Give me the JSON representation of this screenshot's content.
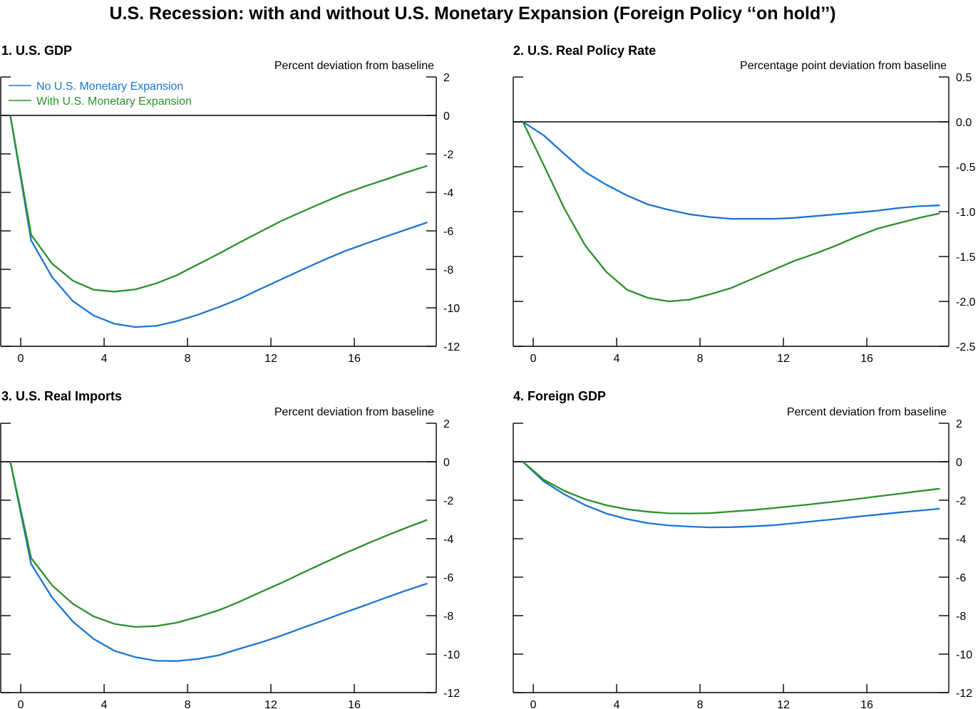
{
  "title": "U.S. Recession: with and without U.S. Monetary Expansion (Foreign Policy ‘‘on hold’’)",
  "legend": [
    {
      "label": "No U.S. Monetary Expansion",
      "color": "#1b75d0"
    },
    {
      "label": "With U.S. Monetary Expansion",
      "color": "#2b8f2b"
    }
  ],
  "chart_data": [
    {
      "type": "line",
      "title": "1. U.S. GDP",
      "ylabel": "Percent deviation from baseline",
      "xlabel": "",
      "xlim": [
        -1,
        20
      ],
      "ylim": [
        -12,
        2
      ],
      "xticks": [
        0,
        4,
        8,
        12,
        16
      ],
      "yticks": [
        2,
        0,
        -2,
        -4,
        -6,
        -8,
        -10,
        -12
      ],
      "ytick_labels": [
        "2",
        "0",
        "-2",
        "-4",
        "-6",
        "-8",
        "-10",
        "-12"
      ],
      "legend": "top-left",
      "grid": false,
      "zero_line": true,
      "x": [
        -0.5,
        0.5,
        1.5,
        2.5,
        3.5,
        4.5,
        5.5,
        6.5,
        7.5,
        8.5,
        9.5,
        10.5,
        11.5,
        12.5,
        13.5,
        14.5,
        15.5,
        16.5,
        17.5,
        18.5,
        19.5
      ],
      "series": [
        {
          "name": "No U.S. Monetary Expansion",
          "color": "#1b75d0",
          "values": [
            0,
            -6.5,
            -8.4,
            -9.65,
            -10.4,
            -10.83,
            -11.0,
            -10.94,
            -10.69,
            -10.36,
            -9.96,
            -9.53,
            -9.02,
            -8.52,
            -8.02,
            -7.53,
            -7.07,
            -6.68,
            -6.3,
            -5.93,
            -5.56
          ]
        },
        {
          "name": "With U.S. Monetary Expansion",
          "color": "#2b8f2b",
          "values": [
            0,
            -6.2,
            -7.7,
            -8.59,
            -9.06,
            -9.16,
            -9.04,
            -8.73,
            -8.3,
            -7.74,
            -7.19,
            -6.6,
            -6.04,
            -5.48,
            -5.0,
            -4.53,
            -4.07,
            -3.69,
            -3.33,
            -2.96,
            -2.62
          ]
        }
      ]
    },
    {
      "type": "line",
      "title": "2. U.S. Real Policy Rate",
      "ylabel": "Percentage point deviation from baseline",
      "xlabel": "",
      "xlim": [
        -1,
        20
      ],
      "ylim": [
        -2.5,
        0.5
      ],
      "xticks": [
        0,
        4,
        8,
        12,
        16
      ],
      "yticks": [
        0.5,
        0,
        -0.5,
        -1,
        -1.5,
        -2,
        -2.5
      ],
      "ytick_labels": [
        "0.5",
        "0.0",
        "-0.5",
        "-1.0",
        "-1.5",
        "-2.0",
        "-2.5"
      ],
      "grid": false,
      "zero_line": true,
      "x": [
        -0.5,
        0.5,
        1.5,
        2.5,
        3.5,
        4.5,
        5.5,
        6.5,
        7.5,
        8.5,
        9.5,
        10.5,
        11.5,
        12.5,
        13.5,
        14.5,
        15.5,
        16.5,
        17.5,
        18.5,
        19.5
      ],
      "series": [
        {
          "name": "No U.S. Monetary Expansion",
          "color": "#1b75d0",
          "values": [
            0,
            -0.15,
            -0.36,
            -0.56,
            -0.7,
            -0.82,
            -0.92,
            -0.98,
            -1.03,
            -1.06,
            -1.08,
            -1.08,
            -1.08,
            -1.07,
            -1.05,
            -1.03,
            -1.01,
            -0.99,
            -0.96,
            -0.94,
            -0.93
          ]
        },
        {
          "name": "With U.S. Monetary Expansion",
          "color": "#2b8f2b",
          "values": [
            0,
            -0.48,
            -0.97,
            -1.38,
            -1.67,
            -1.87,
            -1.96,
            -2.0,
            -1.98,
            -1.92,
            -1.85,
            -1.75,
            -1.65,
            -1.55,
            -1.47,
            -1.38,
            -1.28,
            -1.19,
            -1.13,
            -1.07,
            -1.02
          ]
        }
      ]
    },
    {
      "type": "line",
      "title": "3. U.S. Real Imports",
      "ylabel": "Percent deviation from baseline",
      "xlabel": "",
      "xlim": [
        -1,
        20
      ],
      "ylim": [
        -12,
        2
      ],
      "xticks": [
        0,
        4,
        8,
        12,
        16
      ],
      "yticks": [
        2,
        0,
        -2,
        -4,
        -6,
        -8,
        -10,
        -12
      ],
      "ytick_labels": [
        "2",
        "0",
        "-2",
        "-4",
        "-6",
        "-8",
        "-10",
        "-12"
      ],
      "grid": false,
      "zero_line": true,
      "x": [
        -0.5,
        0.5,
        1.5,
        2.5,
        3.5,
        4.5,
        5.5,
        6.5,
        7.5,
        8.5,
        9.5,
        10.5,
        11.5,
        12.5,
        13.5,
        14.5,
        15.5,
        16.5,
        17.5,
        18.5,
        19.5
      ],
      "series": [
        {
          "name": "No U.S. Monetary Expansion",
          "color": "#1b75d0",
          "values": [
            0,
            -5.32,
            -7.05,
            -8.31,
            -9.21,
            -9.83,
            -10.16,
            -10.35,
            -10.36,
            -10.25,
            -10.06,
            -9.72,
            -9.4,
            -9.04,
            -8.64,
            -8.25,
            -7.85,
            -7.47,
            -7.07,
            -6.69,
            -6.33
          ]
        },
        {
          "name": "With U.S. Monetary Expansion",
          "color": "#2b8f2b",
          "values": [
            0,
            -5.0,
            -6.42,
            -7.38,
            -8.04,
            -8.43,
            -8.59,
            -8.54,
            -8.36,
            -8.06,
            -7.72,
            -7.27,
            -6.78,
            -6.3,
            -5.78,
            -5.28,
            -4.78,
            -4.31,
            -3.86,
            -3.43,
            -3.02
          ]
        }
      ]
    },
    {
      "type": "line",
      "title": "4. Foreign GDP",
      "ylabel": "Percent deviation from baseline",
      "xlabel": "",
      "xlim": [
        -1,
        20
      ],
      "ylim": [
        -12,
        2
      ],
      "xticks": [
        0,
        4,
        8,
        12,
        16
      ],
      "yticks": [
        2,
        0,
        -2,
        -4,
        -6,
        -8,
        -10,
        -12
      ],
      "ytick_labels": [
        "2",
        "0",
        "-2",
        "-4",
        "-6",
        "-8",
        "-10",
        "-12"
      ],
      "grid": false,
      "zero_line": true,
      "x": [
        -0.5,
        0.5,
        1.5,
        2.5,
        3.5,
        4.5,
        5.5,
        6.5,
        7.5,
        8.5,
        9.5,
        10.5,
        11.5,
        12.5,
        13.5,
        14.5,
        15.5,
        16.5,
        17.5,
        18.5,
        19.5
      ],
      "series": [
        {
          "name": "No U.S. Monetary Expansion",
          "color": "#1b75d0",
          "values": [
            0,
            -1.02,
            -1.7,
            -2.26,
            -2.69,
            -2.98,
            -3.19,
            -3.31,
            -3.37,
            -3.41,
            -3.4,
            -3.36,
            -3.3,
            -3.2,
            -3.09,
            -2.98,
            -2.86,
            -2.75,
            -2.64,
            -2.54,
            -2.44
          ]
        },
        {
          "name": "With U.S. Monetary Expansion",
          "color": "#2b8f2b",
          "values": [
            0,
            -0.93,
            -1.52,
            -1.95,
            -2.26,
            -2.47,
            -2.6,
            -2.68,
            -2.69,
            -2.67,
            -2.59,
            -2.51,
            -2.41,
            -2.3,
            -2.19,
            -2.07,
            -1.94,
            -1.8,
            -1.67,
            -1.53,
            -1.4
          ]
        }
      ]
    }
  ]
}
